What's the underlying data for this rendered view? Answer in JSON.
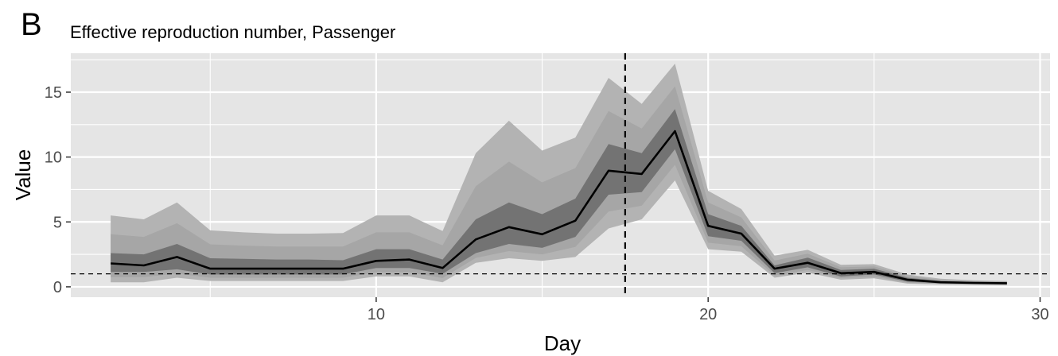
{
  "chart_data": {
    "type": "area",
    "panel_label": "B",
    "title": "Effective reproduction number, Passenger",
    "xlabel": "Day",
    "ylabel": "Value",
    "xlim": [
      0.8,
      30.3
    ],
    "ylim": [
      -0.8,
      18.0
    ],
    "x_ticks": [
      10,
      20,
      30
    ],
    "y_ticks": [
      0,
      5,
      10,
      15
    ],
    "grid": true,
    "legend": "none",
    "reference_lines": [
      {
        "orientation": "horizontal",
        "value": 1.0,
        "style": "dashed"
      },
      {
        "orientation": "vertical",
        "value": 17.5,
        "style": "dashed"
      }
    ],
    "x": [
      2,
      3,
      4,
      5,
      6,
      7,
      8,
      9,
      10,
      11,
      12,
      13,
      14,
      15,
      16,
      17,
      18,
      19,
      20,
      21,
      22,
      23,
      24,
      25,
      26,
      27,
      28,
      29
    ],
    "series": [
      {
        "name": "",
        "role": "median",
        "values": [
          1.8,
          1.65,
          2.3,
          1.4,
          1.4,
          1.4,
          1.4,
          1.4,
          2.0,
          2.1,
          1.45,
          3.65,
          4.6,
          4.05,
          5.1,
          8.95,
          8.7,
          12.0,
          4.7,
          4.1,
          1.4,
          1.85,
          1.05,
          1.15,
          0.55,
          0.35,
          0.3,
          0.28
        ]
      },
      {
        "name": "",
        "role": "inner_band_lower",
        "values": [
          1.15,
          1.15,
          1.35,
          0.95,
          0.95,
          0.95,
          0.95,
          0.95,
          1.45,
          1.45,
          1.0,
          2.6,
          3.3,
          3.0,
          3.85,
          7.1,
          7.3,
          10.6,
          3.9,
          3.55,
          1.05,
          1.5,
          0.8,
          0.95,
          0.4,
          0.28,
          0.25,
          0.22
        ]
      },
      {
        "name": "",
        "role": "inner_band_upper",
        "values": [
          2.6,
          2.5,
          3.3,
          2.2,
          2.15,
          2.1,
          2.1,
          2.05,
          2.9,
          2.9,
          2.1,
          5.2,
          6.5,
          5.6,
          6.8,
          11.0,
          10.3,
          13.7,
          5.6,
          4.7,
          1.65,
          2.25,
          1.3,
          1.4,
          0.7,
          0.45,
          0.38,
          0.35
        ]
      },
      {
        "name": "",
        "role": "outer_band_lower",
        "values": [
          0.35,
          0.35,
          0.7,
          0.45,
          0.45,
          0.45,
          0.45,
          0.45,
          0.8,
          0.8,
          0.35,
          1.85,
          2.2,
          2.0,
          2.3,
          4.5,
          5.2,
          8.2,
          2.9,
          2.7,
          0.7,
          1.1,
          0.55,
          0.65,
          0.25,
          0.18,
          0.14,
          0.12
        ]
      },
      {
        "name": "",
        "role": "outer_band_upper",
        "values": [
          5.5,
          5.2,
          6.5,
          4.35,
          4.2,
          4.1,
          4.1,
          4.15,
          5.5,
          5.5,
          4.3,
          10.3,
          12.8,
          10.5,
          11.5,
          16.1,
          14.1,
          17.2,
          7.4,
          6.0,
          2.4,
          2.85,
          1.7,
          1.75,
          0.95,
          0.62,
          0.5,
          0.45
        ]
      }
    ],
    "colors": {
      "panel_bg": "#e5e5e5",
      "grid": "#ffffff",
      "outer_band": "#b3b3b3",
      "mid_band": "#a6a6a6",
      "inner_band": "#737373",
      "line": "#000000",
      "tick_label": "#4d4d4d"
    }
  }
}
